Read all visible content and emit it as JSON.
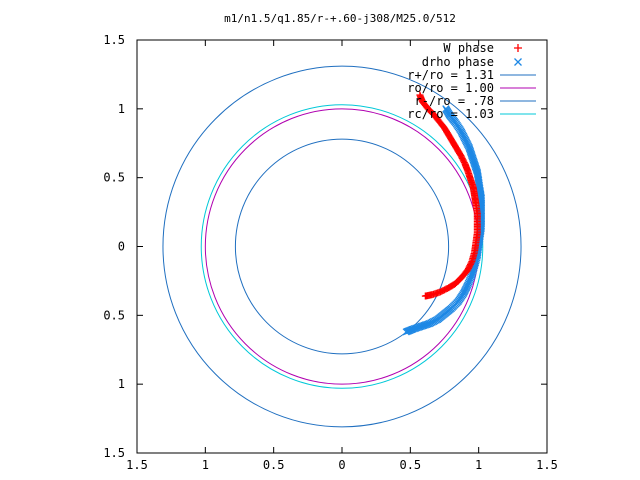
{
  "chart_data": {
    "type": "scatter",
    "title": "m1/n1.5/q1.85/r-+.60-j308/M25.0/512",
    "xlim": [
      -1.5,
      1.5
    ],
    "ylim": [
      -1.5,
      1.5
    ],
    "x_tick_labels": [
      "1.5",
      "1",
      "0.5",
      "0",
      "0.5",
      "1",
      "1.5"
    ],
    "x_tick_values": [
      -1.5,
      -1,
      -0.5,
      0,
      0.5,
      1,
      1.5
    ],
    "y_tick_labels": [
      "1.5",
      "1",
      "0.5",
      "0",
      "0.5",
      "1",
      "1.5"
    ],
    "y_tick_values": [
      1.5,
      1,
      0.5,
      0,
      -0.5,
      -1,
      -1.5
    ],
    "grid": false,
    "legend_position": "top-right",
    "circles": [
      {
        "name": "r+/ro = 1.31",
        "radius": 1.31,
        "color": "#1f6fc0"
      },
      {
        "name": "ro/ro = 1.00",
        "radius": 1.0,
        "color": "#b000b0"
      },
      {
        "name": "r-/ro = .78",
        "radius": 0.78,
        "color": "#1f6fc0"
      },
      {
        "name": "rc/ro = 1.03",
        "radius": 1.03,
        "color": "#00c8d8"
      }
    ],
    "series": [
      {
        "name": "W phase",
        "marker": "plus",
        "color": "#ff0000",
        "points": [
          [
            0.57,
            1.1
          ],
          [
            0.59,
            1.05
          ],
          [
            0.63,
            1.0
          ],
          [
            0.67,
            0.96
          ],
          [
            0.71,
            0.91
          ],
          [
            0.75,
            0.86
          ],
          [
            0.78,
            0.81
          ],
          [
            0.81,
            0.76
          ],
          [
            0.84,
            0.71
          ],
          [
            0.87,
            0.66
          ],
          [
            0.9,
            0.6
          ],
          [
            0.92,
            0.55
          ],
          [
            0.94,
            0.49
          ],
          [
            0.96,
            0.43
          ],
          [
            0.97,
            0.37
          ],
          [
            0.98,
            0.31
          ],
          [
            0.99,
            0.24
          ],
          [
            0.99,
            0.17
          ],
          [
            0.99,
            0.1
          ],
          [
            0.98,
            0.03
          ],
          [
            0.97,
            -0.04
          ],
          [
            0.95,
            -0.11
          ],
          [
            0.92,
            -0.17
          ],
          [
            0.88,
            -0.22
          ],
          [
            0.83,
            -0.27
          ],
          [
            0.78,
            -0.3
          ],
          [
            0.72,
            -0.33
          ],
          [
            0.66,
            -0.35
          ],
          [
            0.61,
            -0.36
          ]
        ]
      },
      {
        "name": "drho phase",
        "marker": "cross",
        "color": "#1e88e5",
        "points": [
          [
            0.76,
            1.0
          ],
          [
            0.79,
            0.95
          ],
          [
            0.83,
            0.9
          ],
          [
            0.87,
            0.84
          ],
          [
            0.9,
            0.78
          ],
          [
            0.93,
            0.72
          ],
          [
            0.95,
            0.66
          ],
          [
            0.97,
            0.6
          ],
          [
            0.99,
            0.54
          ],
          [
            1.0,
            0.48
          ],
          [
            1.01,
            0.41
          ],
          [
            1.02,
            0.35
          ],
          [
            1.02,
            0.28
          ],
          [
            1.02,
            0.21
          ],
          [
            1.02,
            0.14
          ],
          [
            1.01,
            0.07
          ],
          [
            1.0,
            0.0
          ],
          [
            0.99,
            -0.07
          ],
          [
            0.97,
            -0.14
          ],
          [
            0.95,
            -0.21
          ],
          [
            0.92,
            -0.28
          ],
          [
            0.89,
            -0.34
          ],
          [
            0.85,
            -0.4
          ],
          [
            0.8,
            -0.45
          ],
          [
            0.75,
            -0.49
          ],
          [
            0.7,
            -0.53
          ],
          [
            0.64,
            -0.56
          ],
          [
            0.58,
            -0.58
          ],
          [
            0.52,
            -0.6
          ],
          [
            0.47,
            -0.62
          ]
        ]
      }
    ]
  }
}
